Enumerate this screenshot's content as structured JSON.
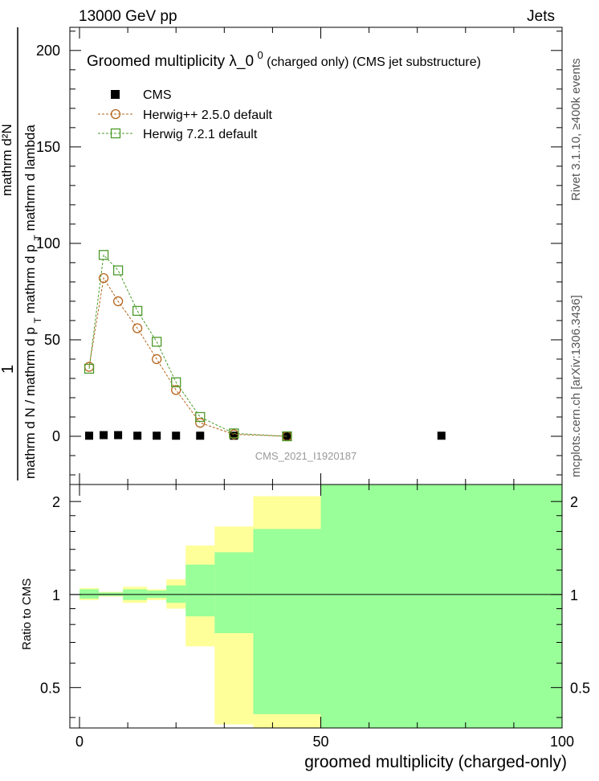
{
  "header": {
    "left": "13000 GeV pp",
    "right": "Jets"
  },
  "side_labels": {
    "rivet": "Rivet 3.1.10, ≥400k events",
    "mcplots": "mcplots.cern.ch [arXiv:1306.3436]"
  },
  "colors": {
    "cms": "#000000",
    "herwigpp": "#b5651d",
    "herwig7": "#4c9a2a",
    "band_yellow": "#ffff99",
    "band_green": "#99ff99"
  },
  "chart_data": [
    {
      "type": "scatter",
      "title_main": "Groomed multiplicity  λ_0",
      "title_sup": "0",
      "title_tail": " (charged only) (CMS jet substructure)",
      "ylabel_top": "1",
      "ylabel_num": "mathrm d²N",
      "ylabel_den": "mathrm d N / mathrm d p_T mathrm d p_T mathrm d lambda",
      "ylabel_frac_left": "mathrm d N / mathrm d p",
      "ylabel_frac_mid": "T",
      "ylabel_frac_right": "mathrm d p",
      "ylabel_frac_sub": "T",
      "ylabel_frac_end": "mathrm d lambda",
      "watermark": "CMS_2021_I1920187",
      "xlim": [
        -2,
        100
      ],
      "ylim": [
        -25,
        212
      ],
      "yticks": [
        0,
        50,
        100,
        150,
        200
      ],
      "legend": [
        "CMS",
        "Herwig++ 2.5.0 default",
        "Herwig 7.2.1 default"
      ],
      "series": [
        {
          "name": "CMS",
          "marker": "filled-square",
          "x": [
            2,
            5,
            8,
            12,
            16,
            20,
            25,
            32,
            43,
            75
          ],
          "y": [
            0.3,
            0.6,
            0.6,
            0.3,
            0.3,
            0.3,
            0.3,
            0.3,
            0.2,
            0.3
          ]
        },
        {
          "name": "Herwig++ 2.5.0 default",
          "marker": "open-circle",
          "x": [
            2,
            5,
            8,
            12,
            16,
            20,
            25,
            32,
            43
          ],
          "y": [
            36,
            82,
            70,
            56,
            40,
            24,
            7,
            1,
            0
          ]
        },
        {
          "name": "Herwig 7.2.1 default",
          "marker": "open-square",
          "x": [
            2,
            5,
            8,
            12,
            16,
            20,
            25,
            32,
            43
          ],
          "y": [
            35,
            94,
            86,
            65,
            49,
            28,
            10,
            1.5,
            0
          ]
        }
      ]
    },
    {
      "type": "area",
      "ylabel": "Ratio to CMS",
      "xlabel": "groomed multiplicity (charged-only)",
      "xlim": [
        -2,
        100
      ],
      "ylim": [
        0.37,
        2.27
      ],
      "xticks": [
        0,
        50,
        100
      ],
      "yticks": [
        0.5,
        1,
        2
      ],
      "reference_line": 1,
      "bins": [
        {
          "x0": 0,
          "x1": 4,
          "yellow": [
            0.96,
            1.05
          ],
          "green": [
            0.97,
            1.04
          ]
        },
        {
          "x0": 4,
          "x1": 9,
          "yellow": [
            0.985,
            1.02
          ],
          "green": [
            0.99,
            1.015
          ]
        },
        {
          "x0": 9,
          "x1": 14,
          "yellow": [
            0.94,
            1.06
          ],
          "green": [
            0.96,
            1.04
          ]
        },
        {
          "x0": 14,
          "x1": 18,
          "yellow": [
            0.96,
            1.04
          ],
          "green": [
            0.975,
            1.03
          ]
        },
        {
          "x0": 18,
          "x1": 22,
          "yellow": [
            0.9,
            1.12
          ],
          "green": [
            0.94,
            1.07
          ]
        },
        {
          "x0": 22,
          "x1": 28,
          "yellow": [
            0.68,
            1.44
          ],
          "green": [
            0.85,
            1.25
          ]
        },
        {
          "x0": 28,
          "x1": 36,
          "yellow": [
            0.38,
            1.66
          ],
          "green": [
            0.75,
            1.37
          ]
        },
        {
          "x0": 36,
          "x1": 50,
          "yellow": [
            0.37,
            2.08
          ],
          "green": [
            0.41,
            1.63
          ]
        },
        {
          "x0": 50,
          "x1": 100,
          "yellow": [
            0.37,
            2.27
          ],
          "green": [
            0.37,
            2.27
          ]
        }
      ]
    }
  ]
}
